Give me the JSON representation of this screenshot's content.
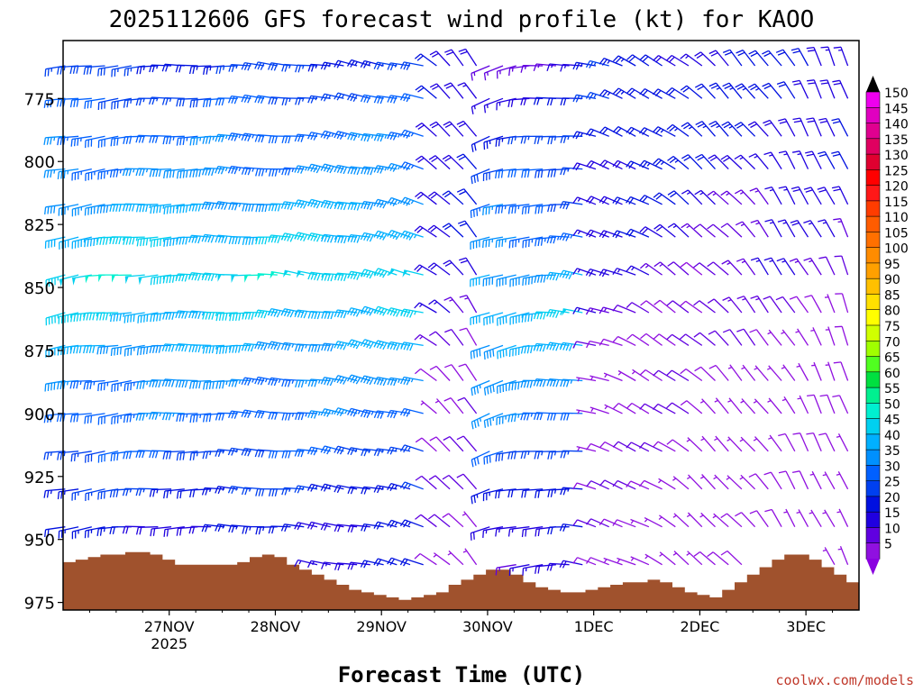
{
  "chart_data": {
    "type": "wind-barb-profile",
    "title": "2025112606 GFS forecast wind profile (kt) for KAOO",
    "xlabel": "Forecast Time (UTC)",
    "ylabel": "",
    "credit": "coolwx.com/models",
    "x_ticks": [
      {
        "label": "27NOV",
        "sublabel": "2025",
        "day": 1.0
      },
      {
        "label": "28NOV",
        "sublabel": "",
        "day": 2.0
      },
      {
        "label": "29NOV",
        "sublabel": "",
        "day": 3.0
      },
      {
        "label": "30NOV",
        "sublabel": "",
        "day": 4.0
      },
      {
        "label": "1DEC",
        "sublabel": "",
        "day": 5.0
      },
      {
        "label": "2DEC",
        "sublabel": "",
        "day": 6.0
      },
      {
        "label": "3DEC",
        "sublabel": "",
        "day": 7.0
      }
    ],
    "x_range_days": [
      0.0,
      7.5
    ],
    "y_range_hpa": [
      752,
      978
    ],
    "y_ticks": [
      775,
      800,
      825,
      850,
      875,
      900,
      925,
      950,
      975
    ],
    "levels_hpa": [
      762,
      775,
      790,
      803,
      817,
      830,
      845,
      860,
      873,
      887,
      900,
      915,
      930,
      945,
      960,
      975
    ],
    "time_step_hours": 3,
    "terrain_surface_hpa": [
      959,
      958,
      957,
      956,
      956,
      955,
      955,
      956,
      958,
      960,
      960,
      960,
      960,
      960,
      959,
      957,
      956,
      957,
      960,
      962,
      964,
      966,
      968,
      970,
      971,
      972,
      973,
      974,
      973,
      972,
      971,
      968,
      966,
      964,
      962,
      962,
      964,
      967,
      969,
      970,
      971,
      971,
      970,
      969,
      968,
      967,
      967,
      966,
      967,
      969,
      971,
      972,
      973,
      970,
      967,
      964,
      961,
      958,
      956,
      956,
      958,
      961,
      964,
      967,
      968
    ],
    "wind_segments": [
      {
        "t0": 0.0,
        "t1": 3.4,
        "dir0": 260,
        "dir1": 285,
        "speed_peak": 48,
        "peak_level": 845,
        "speed_low": 18
      },
      {
        "t0": 3.4,
        "t1": 4.0,
        "dir0": 300,
        "dir1": 330,
        "speed_peak": 22,
        "peak_level": 800,
        "speed_low": 8
      },
      {
        "t0": 4.0,
        "t1": 5.0,
        "dir0": 250,
        "dir1": 280,
        "speed_peak": 45,
        "peak_level": 860,
        "speed_low": 12
      },
      {
        "t0": 5.0,
        "t1": 6.0,
        "dir0": 285,
        "dir1": 310,
        "speed_peak": 25,
        "peak_level": 780,
        "speed_low": 8
      },
      {
        "t0": 6.0,
        "t1": 7.5,
        "dir0": 310,
        "dir1": 340,
        "speed_peak": 22,
        "peak_level": 780,
        "speed_low": 6
      }
    ],
    "colorbar": {
      "labels": [
        "150",
        "145",
        "140",
        "135",
        "130",
        "125",
        "120",
        "115",
        "110",
        "105",
        "100",
        "95",
        "90",
        "85",
        "80",
        "75",
        "70",
        "65",
        "60",
        "55",
        "50",
        "45",
        "40",
        "35",
        "30",
        "25",
        "20",
        "15",
        "10",
        "5"
      ],
      "colors": [
        "#ee00ee",
        "#e000c0",
        "#e00090",
        "#e00060",
        "#e00030",
        "#ff0000",
        "#ff1818",
        "#ff3c00",
        "#ff5c00",
        "#ff7000",
        "#ff8c00",
        "#ffa000",
        "#ffc000",
        "#ffe000",
        "#ffff00",
        "#d0ff00",
        "#a0ff00",
        "#50ff20",
        "#00e040",
        "#00f090",
        "#00f0d0",
        "#00d0f0",
        "#00b0ff",
        "#0090ff",
        "#0060ff",
        "#0040f0",
        "#0010e0",
        "#2000e0",
        "#6000e0",
        "#9010e0"
      ],
      "top_arrow_color": "#000000",
      "bottom_arrow_color": "#8a00e0"
    },
    "terrain_color": "#a0522d"
  }
}
